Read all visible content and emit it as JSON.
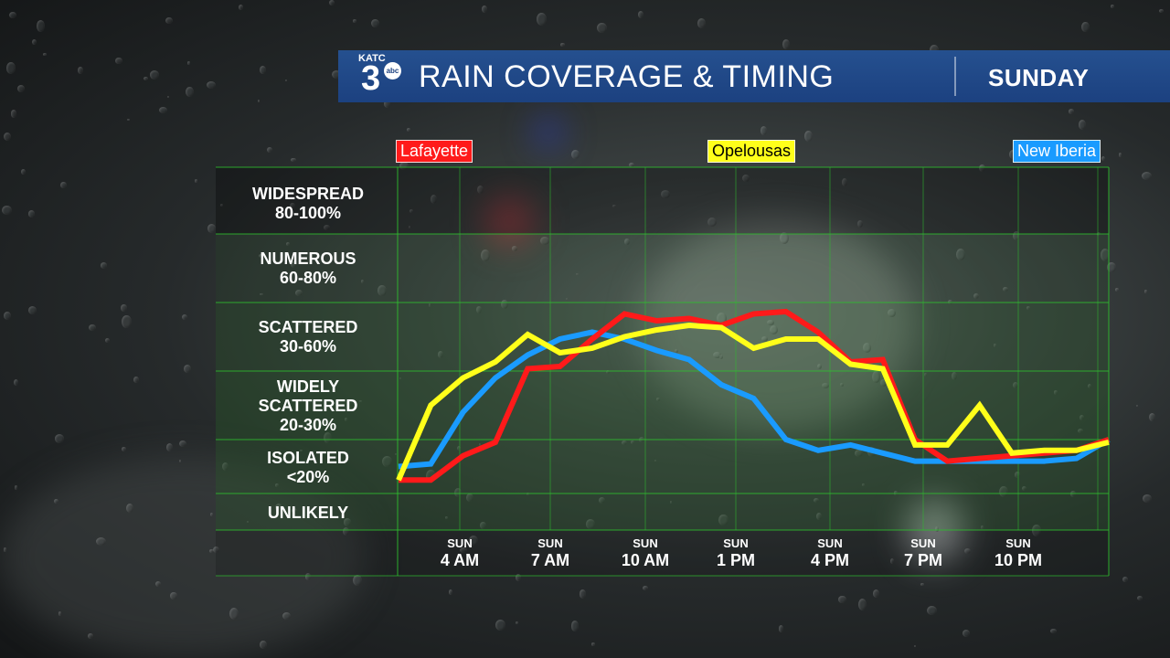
{
  "header": {
    "logo_text": "KATC",
    "logo_number": "3",
    "logo_network": "abc",
    "title": "RAIN COVERAGE & TIMING",
    "day": "SUNDAY"
  },
  "colors": {
    "header_bg": "#1c4180",
    "lafayette": "#ff1a1a",
    "opelousas": "#ffff1a",
    "new_iberia": "#1a9bff",
    "grid": "#2ebd2e"
  },
  "chart_data": {
    "type": "line",
    "title": "RAIN COVERAGE & TIMING",
    "subtitle": "SUNDAY",
    "categories_y": [
      {
        "name": "WIDESPREAD",
        "range": "80-100%"
      },
      {
        "name": "NUMEROUS",
        "range": "60-80%"
      },
      {
        "name": "SCATTERED",
        "range": "30-60%"
      },
      {
        "name": "WIDELY SCATTERED",
        "range": "20-30%"
      },
      {
        "name": "ISOLATED",
        "range": "<20%"
      },
      {
        "name": "UNLIKELY",
        "range": ""
      }
    ],
    "x_ticks": [
      {
        "day": "SUN",
        "time": "4 AM"
      },
      {
        "day": "SUN",
        "time": "7 AM"
      },
      {
        "day": "SUN",
        "time": "10 AM"
      },
      {
        "day": "SUN",
        "time": "1 PM"
      },
      {
        "day": "SUN",
        "time": "4 PM"
      },
      {
        "day": "SUN",
        "time": "7 PM"
      },
      {
        "day": "SUN",
        "time": "10 PM"
      }
    ],
    "x_hours": [
      2,
      3,
      4,
      5,
      6,
      7,
      8,
      9,
      10,
      11,
      12,
      13,
      14,
      15,
      16,
      17,
      18,
      19,
      20,
      21,
      22,
      23,
      24
    ],
    "legend": [
      "Lafayette",
      "Opelousas",
      "New Iberia"
    ],
    "series": [
      {
        "name": "Lafayette",
        "color": "#ff1a1a",
        "values": [
          5,
          5,
          14,
          19,
          31,
          32,
          44,
          55,
          52,
          53,
          50,
          55,
          56,
          47,
          34,
          35,
          20,
          12,
          13,
          14,
          15,
          16,
          20
        ]
      },
      {
        "name": "Opelousas",
        "color": "#ffff1a",
        "values": [
          5,
          25,
          29,
          34,
          46,
          38,
          40,
          45,
          48,
          50,
          49,
          40,
          44,
          44,
          33,
          31,
          18,
          18,
          25,
          15,
          16,
          16,
          19
        ]
      },
      {
        "name": "New Iberia",
        "color": "#1a9bff",
        "values": [
          10,
          11,
          24,
          29,
          37,
          44,
          47,
          44,
          39,
          35,
          28,
          26,
          20,
          16,
          18,
          15,
          12,
          12,
          12,
          12,
          12,
          13,
          20
        ]
      }
    ]
  }
}
